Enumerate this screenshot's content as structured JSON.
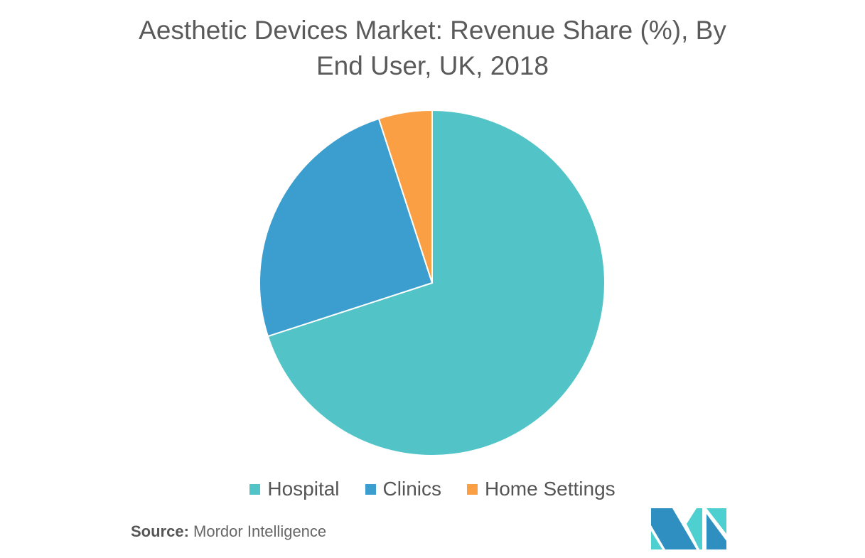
{
  "chart_data": {
    "type": "pie",
    "title": "Aesthetic Devices Market: Revenue Share (%), By End User, UK, 2018",
    "title_lines": [
      "Aesthetic Devices Market: Revenue Share (%), By",
      "End User, UK, 2018"
    ],
    "categories": [
      "Hospital",
      "Clinics",
      "Home Settings"
    ],
    "values": [
      70,
      25,
      5
    ],
    "colors": [
      "#52C4C7",
      "#3C9ECF",
      "#FA9F44"
    ],
    "start": "top, clockwise",
    "legend_position": "bottom"
  },
  "source": {
    "label": "Source:",
    "text": "Mordor Intelligence"
  },
  "logo": {
    "text": "Mordor Intelligence"
  }
}
